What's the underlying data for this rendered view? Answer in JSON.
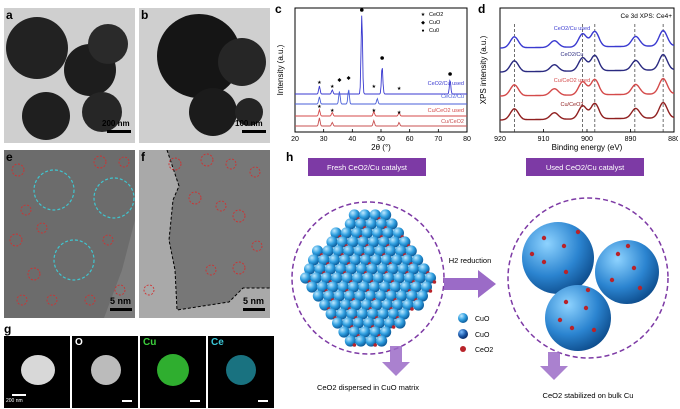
{
  "panels": {
    "a": {
      "label": "a",
      "scale": "200 nm"
    },
    "b": {
      "label": "b",
      "scale": "100 nm"
    },
    "c": {
      "label": "c"
    },
    "d": {
      "label": "d"
    },
    "e": {
      "label": "e",
      "scale": "5 nm"
    },
    "f": {
      "label": "f",
      "scale": "5 nm"
    },
    "g": {
      "label": "g",
      "scale": "200 nm",
      "maps": [
        "O",
        "Cu",
        "Ce"
      ]
    },
    "h": {
      "label": "h"
    }
  },
  "chart_data": [
    {
      "type": "line",
      "panel": "c",
      "xlabel": "2θ (°)",
      "ylabel": "Intensity (a.u.)",
      "xlim": [
        20,
        80
      ],
      "xticks": [
        20,
        30,
        40,
        50,
        60,
        70,
        80
      ],
      "legend": [
        {
          "name": "CeO2",
          "marker": "star"
        },
        {
          "name": "CuO",
          "marker": "diamond"
        },
        {
          "name": "Cu0",
          "marker": "circle"
        }
      ],
      "series": [
        {
          "name": "CeO2/Cu used",
          "color": "#3a3ad0"
        },
        {
          "name": "CeO2/Cu",
          "color": "#4a5fd8"
        },
        {
          "name": "Cu/CeO2 used",
          "color": "#d44a4a"
        },
        {
          "name": "Cu/CeO2",
          "color": "#c85050"
        }
      ]
    },
    {
      "type": "line",
      "panel": "d",
      "title": "Ce 3d XPS: Ce4+",
      "xlabel": "Binding energy (eV)",
      "ylabel": "XPS intensity (a.u.)",
      "xlim": [
        920,
        880
      ],
      "xticks": [
        920,
        910,
        900,
        890,
        880
      ],
      "dashed_lines": [
        916.7,
        901,
        898.2,
        889,
        882.5
      ],
      "series": [
        {
          "name": "CeO2/Cu used",
          "color": "#3a3ad0"
        },
        {
          "name": "CeO2/Cu",
          "color": "#2a2a80"
        },
        {
          "name": "Cu/CeO2 used",
          "color": "#d44a4a"
        },
        {
          "name": "Cu/CeO2",
          "color": "#902020"
        }
      ]
    }
  ],
  "schematic": {
    "fresh_title": "Fresh CeO2/Cu catalyst",
    "used_title": "Used CeO2/Cu catalyst",
    "arrow_label": "H2 reduction",
    "legend": [
      "CuO",
      "CuO",
      "CeO2"
    ],
    "fresh_caption": "CeO2 dispersed in CuO matrix",
    "used_caption": "CeO2 stabilized on bulk Cu",
    "colors": {
      "header": "#7d3aa5",
      "arrow": "#9b6bc7",
      "sphere": "#2f9fe0",
      "ceo2": "#b8232a"
    }
  }
}
